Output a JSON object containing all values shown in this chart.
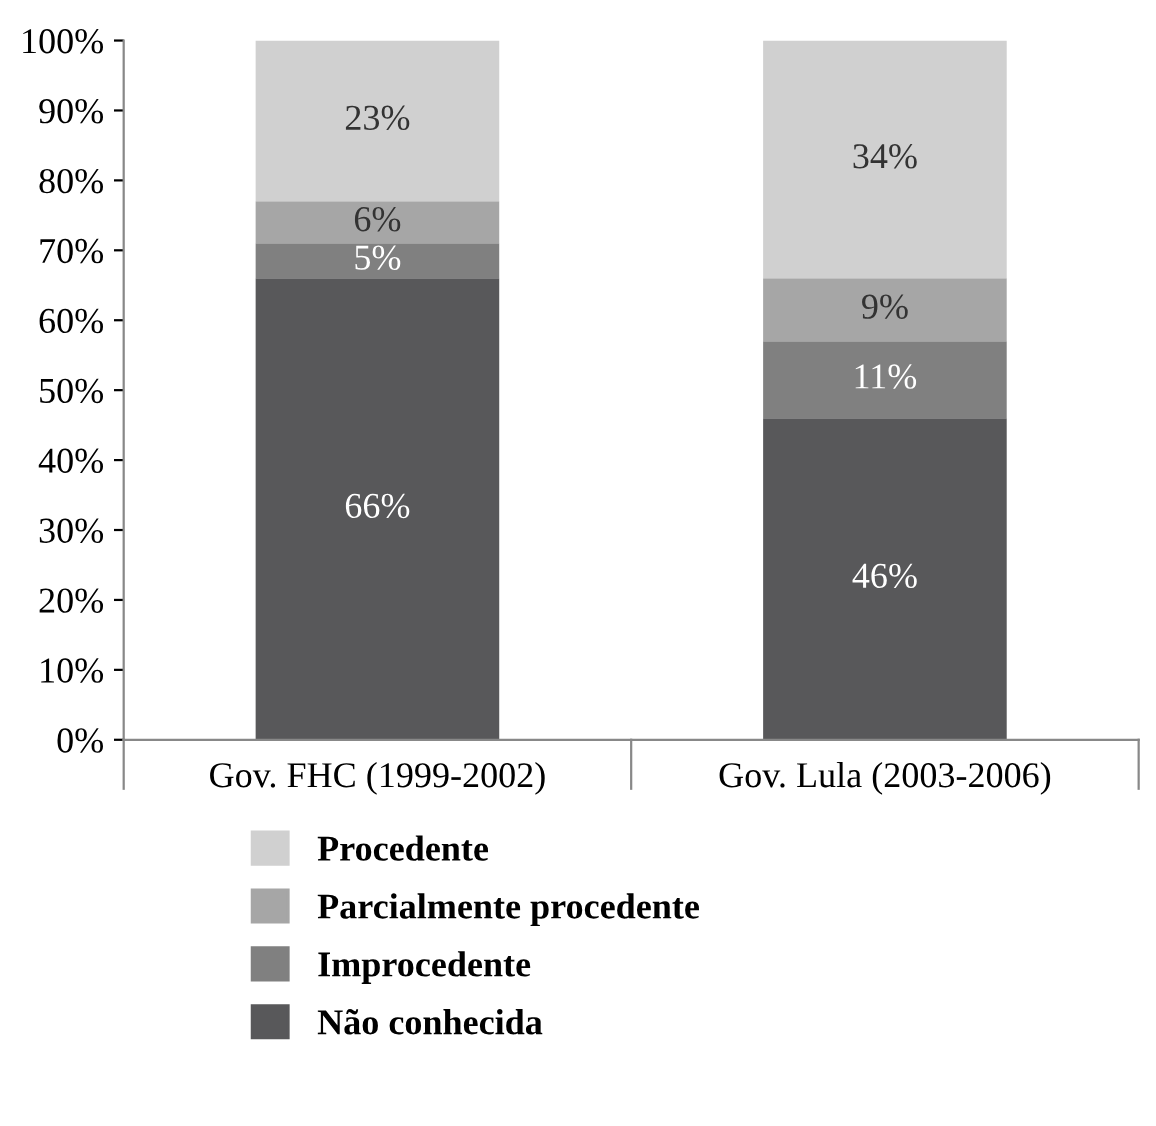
{
  "chart_data": {
    "type": "bar",
    "stacked": true,
    "categories": [
      "Gov. FHC (1999-2002)",
      "Gov. Lula (2003-2006)"
    ],
    "series": [
      {
        "name": "Não conhecida",
        "color": "#58585a",
        "values": [
          66,
          46
        ],
        "value_labels": [
          "66%",
          "46%"
        ]
      },
      {
        "name": "Improcedente",
        "color": "#808080",
        "values": [
          5,
          11
        ],
        "value_labels": [
          "5%",
          "11%"
        ]
      },
      {
        "name": "Parcialmente procedente",
        "color": "#a6a6a6",
        "values": [
          6,
          9
        ],
        "value_labels": [
          "6%",
          "9%"
        ]
      },
      {
        "name": "Procedente",
        "color": "#d0d0d0",
        "values": [
          23,
          34
        ],
        "value_labels": [
          "23%",
          "34%"
        ]
      }
    ],
    "ylim": [
      0,
      100
    ],
    "yticks": [
      {
        "value": 0,
        "label": "0%"
      },
      {
        "value": 10,
        "label": "10%"
      },
      {
        "value": 20,
        "label": "20%"
      },
      {
        "value": 30,
        "label": "30%"
      },
      {
        "value": 40,
        "label": "40%"
      },
      {
        "value": 50,
        "label": "50%"
      },
      {
        "value": 60,
        "label": "60%"
      },
      {
        "value": 70,
        "label": "70%"
      },
      {
        "value": 80,
        "label": "80%"
      },
      {
        "value": 90,
        "label": "90%"
      },
      {
        "value": 100,
        "label": "100%"
      }
    ],
    "grid": false,
    "legend": "bottom"
  }
}
